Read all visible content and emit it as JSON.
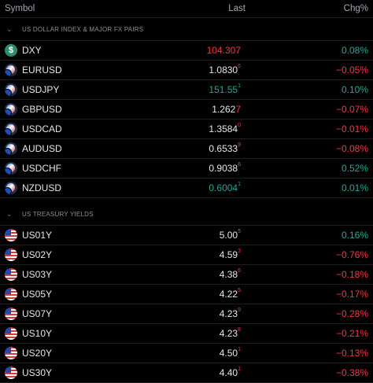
{
  "header": {
    "symbol": "Symbol",
    "last": "Last",
    "chg": "Chg%"
  },
  "sections": [
    {
      "title": "US DOLLAR INDEX & MAJOR FX PAIRS",
      "rows": [
        {
          "symbol": "DXY",
          "icon": "dxy-icon",
          "last_main": "104.307",
          "last_sup": "",
          "last_color": "down",
          "chg": "0.08%",
          "chg_color": "up"
        },
        {
          "symbol": "EURUSD",
          "icon": "eur-usd-flag-icon",
          "last_main": "1.0830",
          "last_sup": "6",
          "last_color": "neutral",
          "chg": "−0.05%",
          "chg_color": "down"
        },
        {
          "symbol": "USDJPY",
          "icon": "usd-jpy-flag-icon",
          "last_main": "151.55",
          "last_sup": "1",
          "last_color": "up",
          "chg": "0.10%",
          "chg_color": "up"
        },
        {
          "symbol": "GBPUSD",
          "icon": "gbp-usd-flag-icon",
          "last_main": "1.262",
          "last_sup": "7",
          "last_color": "neutral",
          "chg": "−0.07%",
          "chg_color": "down",
          "sup_big": true
        },
        {
          "symbol": "USDCAD",
          "icon": "usd-cad-flag-icon",
          "last_main": "1.3584",
          "last_sup": "0",
          "last_color": "neutral",
          "chg": "−0.01%",
          "chg_color": "down"
        },
        {
          "symbol": "AUDUSD",
          "icon": "aud-usd-flag-icon",
          "last_main": "0.6533",
          "last_sup": "9",
          "last_color": "neutral",
          "chg": "−0.08%",
          "chg_color": "down"
        },
        {
          "symbol": "USDCHF",
          "icon": "usd-chf-flag-icon",
          "last_main": "0.9038",
          "last_sup": "6",
          "last_color": "neutral",
          "chg": "0.52%",
          "chg_color": "up"
        },
        {
          "symbol": "NZDUSD",
          "icon": "nzd-usd-flag-icon",
          "last_main": "0.6004",
          "last_sup": "1",
          "last_color": "up",
          "chg": "0.01%",
          "chg_color": "up"
        }
      ]
    },
    {
      "title": "US TREASURY YIELDS",
      "rows": [
        {
          "symbol": "US01Y",
          "icon": "us-flag-icon",
          "last_main": "5.00",
          "last_sup": "5",
          "last_color": "neutral",
          "chg": "0.16%",
          "chg_color": "up"
        },
        {
          "symbol": "US02Y",
          "icon": "us-flag-icon",
          "last_main": "4.59",
          "last_sup": "3",
          "last_color": "neutral",
          "chg": "−0.76%",
          "chg_color": "down"
        },
        {
          "symbol": "US03Y",
          "icon": "us-flag-icon",
          "last_main": "4.38",
          "last_sup": "6",
          "last_color": "neutral",
          "chg": "−0.18%",
          "chg_color": "down"
        },
        {
          "symbol": "US05Y",
          "icon": "us-flag-icon",
          "last_main": "4.22",
          "last_sup": "5",
          "last_color": "neutral",
          "chg": "−0.17%",
          "chg_color": "down"
        },
        {
          "symbol": "US07Y",
          "icon": "us-flag-icon",
          "last_main": "4.23",
          "last_sup": "9",
          "last_color": "neutral",
          "chg": "−0.28%",
          "chg_color": "down"
        },
        {
          "symbol": "US10Y",
          "icon": "us-flag-icon",
          "last_main": "4.23",
          "last_sup": "8",
          "last_color": "neutral",
          "chg": "−0.21%",
          "chg_color": "down"
        },
        {
          "symbol": "US20Y",
          "icon": "us-flag-icon",
          "last_main": "4.50",
          "last_sup": "1",
          "last_color": "neutral",
          "chg": "−0.13%",
          "chg_color": "down"
        },
        {
          "symbol": "US30Y",
          "icon": "us-flag-icon",
          "last_main": "4.40",
          "last_sup": "1",
          "last_color": "neutral",
          "chg": "−0.38%",
          "chg_color": "down"
        }
      ]
    }
  ],
  "colors": {
    "up": "#26a69a",
    "down": "#f23645",
    "neutral": "#e6e7ea",
    "background": "#000000"
  }
}
